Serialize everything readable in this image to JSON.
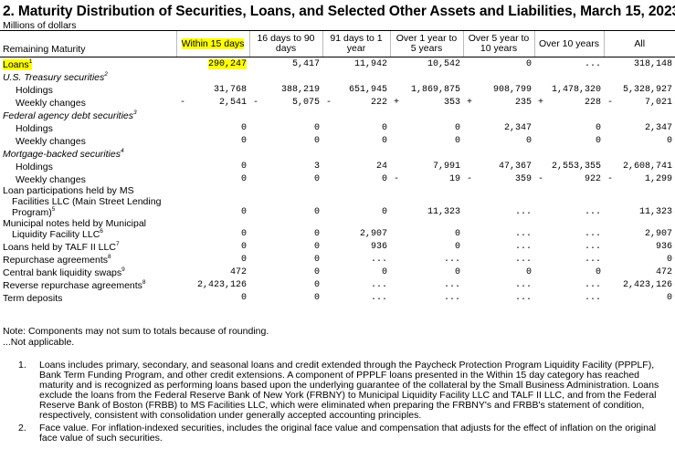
{
  "header": {
    "title": "2. Maturity Distribution of Securities, Loans, and Selected Other Assets and Liabilities, March 15, 2023",
    "subtitle": "Millions of dollars"
  },
  "table": {
    "columns": [
      "Remaining Maturity",
      "Within 15 days",
      "16 days to 90 days",
      "91 days to 1 year",
      "Over 1 year to 5 years",
      "Over 5 year to 10 years",
      "Over 10 years",
      "All"
    ],
    "rows": [
      {
        "label": "Loans",
        "note": "1",
        "cells": [
          "290,247",
          "5,417",
          "11,942",
          "10,542",
          "0",
          "...",
          "318,148"
        ]
      },
      {
        "label": "U.S. Treasury securities",
        "note": "2",
        "rows": [
          {
            "label": "Holdings",
            "cells": [
              "31,768",
              "388,219",
              "651,945",
              "1,869,875",
              "908,799",
              "1,478,320",
              "5,328,927"
            ]
          },
          {
            "label": "Weekly changes",
            "cells": [
              {
                "sign": "-",
                "text": "2,541"
              },
              {
                "sign": "-",
                "text": "5,075"
              },
              {
                "sign": "-",
                "text": "222"
              },
              {
                "sign": "+",
                "text": "353"
              },
              {
                "sign": "+",
                "text": "235"
              },
              {
                "sign": "+",
                "text": "228"
              },
              {
                "sign": "-",
                "text": "7,021"
              }
            ]
          }
        ]
      },
      {
        "label": "Federal agency debt securities",
        "note": "3",
        "rows": [
          {
            "label": "Holdings",
            "cells": [
              "0",
              "0",
              "0",
              "0",
              "2,347",
              "0",
              "2,347"
            ]
          },
          {
            "label": "Weekly changes",
            "cells": [
              "0",
              "0",
              "0",
              "0",
              "0",
              "0",
              "0"
            ]
          }
        ]
      },
      {
        "label": "Mortgage-backed securities",
        "note": "4",
        "rows": [
          {
            "label": "Holdings",
            "cells": [
              "0",
              "3",
              "24",
              "7,991",
              "47,367",
              "2,553,355",
              "2,608,741"
            ]
          },
          {
            "label": "Weekly changes",
            "cells": [
              "0",
              "0",
              "0",
              {
                "sign": "-",
                "text": "19"
              },
              {
                "sign": "-",
                "text": "359"
              },
              {
                "sign": "-",
                "text": "922"
              },
              {
                "sign": "-",
                "text": "1,299"
              }
            ]
          }
        ]
      },
      {
        "label": "Loan participations held by MS Facilities LLC (Main Street Lending Program)",
        "note": "5",
        "cells": [
          "0",
          "0",
          "0",
          "11,323",
          "...",
          "...",
          "11,323"
        ]
      },
      {
        "label": "Municipal notes held by Municipal Liquidity Facility LLC",
        "note": "6",
        "cells": [
          "0",
          "0",
          "2,907",
          "0",
          "...",
          "...",
          "2,907"
        ]
      },
      {
        "label": "Loans held by TALF II LLC",
        "note": "7",
        "cells": [
          "0",
          "0",
          "936",
          "0",
          "...",
          "...",
          "936"
        ]
      },
      {
        "label": "Repurchase agreements",
        "note": "8",
        "cells": [
          "0",
          "0",
          "...",
          "...",
          "...",
          "...",
          "0"
        ]
      },
      {
        "label": "Central bank liquidity swaps",
        "note": "9",
        "cells": [
          "472",
          "0",
          "0",
          "0",
          "0",
          "0",
          "472"
        ]
      },
      {
        "label": "Reverse repurchase agreements",
        "note": "8",
        "cells": [
          "2,423,126",
          "0",
          "...",
          "...",
          "...",
          "...",
          "2,423,126"
        ]
      },
      {
        "label": "Term deposits",
        "cells": [
          "0",
          "0",
          "...",
          "...",
          "...",
          "...",
          "0"
        ]
      }
    ]
  },
  "notes": [
    "Note: Components may not sum to totals because of rounding.",
    "...Not applicable."
  ],
  "footnotes": [
    {
      "number": "1.",
      "text": "Loans includes primary, secondary, and seasonal loans and credit extended through the Paycheck Protection Program Liquidity Facility (PPPLF), Bank Term Funding Program, and other credit extensions. A component of PPPLF loans presented in the Within 15 day category has reached maturity and is recognized as performing loans based upon the underlying guarantee of the collateral by the Small Business Administration. Loans exclude the loans from the Federal Reserve Bank of New York (FRBNY) to Municipal Liquidity Facility LLC and TALF II LLC, and from the Federal Reserve Bank of Boston (FRBB) to MS Facilities LLC, which were eliminated when preparing the FRBNY's and FRBB's statement of condition, respectively, consistent with consolidation under generally accepted accounting principles."
    },
    {
      "number": "2.",
      "text": "Face value. For inflation-indexed securities, includes the original face value and compensation that adjusts for the effect of inflation on the original face value of such securities."
    }
  ]
}
